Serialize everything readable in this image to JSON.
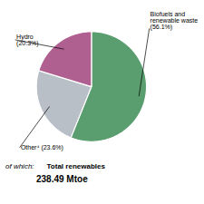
{
  "chart_data": {
    "type": "pie",
    "categories": [
      "Biofuels and\nrenewable waste\n(56.1%)",
      "Other⁴ (23.6%)",
      "Hydro\n(20.3%)"
    ],
    "values": [
      56.1,
      23.6,
      20.3
    ],
    "colors": [
      "#5a9e6f",
      "#b8bfc7",
      "#b06090"
    ],
    "subtitle": [
      "of which:",
      "Total renewables"
    ],
    "annotations": [
      "238.49 Mtoe"
    ]
  }
}
